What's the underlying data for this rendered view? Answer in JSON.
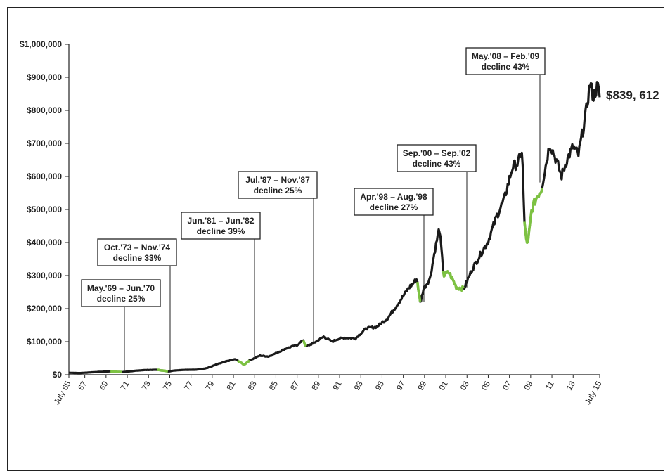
{
  "chart_data": {
    "type": "line",
    "title": "",
    "xlabel": "",
    "ylabel": "",
    "x_range": [
      1965.5,
      2015.5
    ],
    "ylim": [
      0,
      1000000
    ],
    "grid": false,
    "y_ticks": [
      {
        "value": 0,
        "label": "$0"
      },
      {
        "value": 100000,
        "label": "$100,000"
      },
      {
        "value": 200000,
        "label": "$200,000"
      },
      {
        "value": 300000,
        "label": "$300,000"
      },
      {
        "value": 400000,
        "label": "$400,000"
      },
      {
        "value": 500000,
        "label": "$500,000"
      },
      {
        "value": 600000,
        "label": "$600,000"
      },
      {
        "value": 700000,
        "label": "$700,000"
      },
      {
        "value": 800000,
        "label": "$800,000"
      },
      {
        "value": 900000,
        "label": "$900,000"
      },
      {
        "value": 1000000,
        "label": "$1,000,000"
      }
    ],
    "x_ticks": [
      {
        "value": 1965.5,
        "label": "July 65"
      },
      {
        "value": 1967,
        "label": "67"
      },
      {
        "value": 1969,
        "label": "69"
      },
      {
        "value": 1971,
        "label": "71"
      },
      {
        "value": 1973,
        "label": "73"
      },
      {
        "value": 1975,
        "label": "75"
      },
      {
        "value": 1977,
        "label": "77"
      },
      {
        "value": 1979,
        "label": "79"
      },
      {
        "value": 1981,
        "label": "81"
      },
      {
        "value": 1983,
        "label": "83"
      },
      {
        "value": 1985,
        "label": "85"
      },
      {
        "value": 1987,
        "label": "87"
      },
      {
        "value": 1989,
        "label": "89"
      },
      {
        "value": 1991,
        "label": "91"
      },
      {
        "value": 1993,
        "label": "93"
      },
      {
        "value": 1995,
        "label": "95"
      },
      {
        "value": 1997,
        "label": "97"
      },
      {
        "value": 1999,
        "label": "99"
      },
      {
        "value": 2001,
        "label": "01"
      },
      {
        "value": 2003,
        "label": "03"
      },
      {
        "value": 2005,
        "label": "05"
      },
      {
        "value": 2007,
        "label": "07"
      },
      {
        "value": 2009,
        "label": "09"
      },
      {
        "value": 2011,
        "label": "11"
      },
      {
        "value": 2013,
        "label": "13"
      },
      {
        "value": 2015.5,
        "label": "July 15"
      }
    ],
    "series": [
      {
        "color": "#1a1a1a",
        "points": [
          [
            1965.5,
            6000
          ],
          [
            1966.5,
            5000
          ],
          [
            1967.5,
            7000
          ],
          [
            1968.5,
            9000
          ],
          [
            1969.4,
            10000
          ],
          [
            1970.5,
            8000
          ],
          [
            1971.5,
            11000
          ],
          [
            1972.5,
            14000
          ],
          [
            1973.8,
            15000
          ],
          [
            1974.9,
            10000
          ],
          [
            1975.5,
            13000
          ],
          [
            1976.5,
            15000
          ],
          [
            1977.5,
            15000
          ],
          [
            1978.5,
            20000
          ],
          [
            1979.5,
            32000
          ],
          [
            1980.5,
            42000
          ],
          [
            1981.2,
            47000
          ],
          [
            1982.0,
            30000
          ],
          [
            1982.5,
            43000
          ],
          [
            1983.5,
            58000
          ],
          [
            1984.3,
            55000
          ],
          [
            1985.0,
            65000
          ],
          [
            1986.0,
            80000
          ],
          [
            1987.0,
            90000
          ],
          [
            1987.6,
            105000
          ],
          [
            1987.8,
            85000
          ],
          [
            1988.5,
            95000
          ],
          [
            1989.5,
            115000
          ],
          [
            1990.3,
            100000
          ],
          [
            1990.8,
            108000
          ],
          [
            1991.5,
            112000
          ],
          [
            1992.5,
            110000
          ],
          [
            1993.5,
            140000
          ],
          [
            1994.5,
            145000
          ],
          [
            1995.5,
            170000
          ],
          [
            1996.5,
            215000
          ],
          [
            1997.5,
            262000
          ],
          [
            1998.3,
            290000
          ],
          [
            1998.6,
            215000
          ],
          [
            1998.9,
            260000
          ],
          [
            1999.5,
            290000
          ],
          [
            2000.0,
            380000
          ],
          [
            2000.4,
            445000
          ],
          [
            2000.8,
            300000
          ],
          [
            2001.3,
            310000
          ],
          [
            2002.0,
            265000
          ],
          [
            2002.7,
            260000
          ],
          [
            2003.5,
            320000
          ],
          [
            2004.2,
            360000
          ],
          [
            2005.0,
            405000
          ],
          [
            2005.8,
            480000
          ],
          [
            2006.5,
            530000
          ],
          [
            2007.3,
            630000
          ],
          [
            2007.8,
            640000
          ],
          [
            2008.2,
            680000
          ],
          [
            2008.4,
            460000
          ],
          [
            2008.7,
            385000
          ],
          [
            2009.1,
            500000
          ],
          [
            2009.6,
            540000
          ],
          [
            2010.0,
            560000
          ],
          [
            2010.8,
            700000
          ],
          [
            2011.4,
            650000
          ],
          [
            2011.9,
            600000
          ],
          [
            2012.4,
            650000
          ],
          [
            2013.0,
            690000
          ],
          [
            2013.5,
            665000
          ],
          [
            2014.2,
            790000
          ],
          [
            2014.6,
            885000
          ],
          [
            2014.9,
            840000
          ],
          [
            2015.3,
            875000
          ],
          [
            2015.5,
            839612
          ]
        ]
      }
    ],
    "highlight_periods": [
      {
        "start": 1969.4,
        "end": 1970.5,
        "label_line1": "May.'69 – Jun.'70",
        "label_line2": "decline 25%"
      },
      {
        "start": 1973.8,
        "end": 1974.9,
        "label_line1": "Oct.'73 – Nov.'74",
        "label_line2": "decline 33%"
      },
      {
        "start": 1981.4,
        "end": 1982.5,
        "label_line1": "Jun.'81 – Jun.'82",
        "label_line2": "decline 39%"
      },
      {
        "start": 1987.55,
        "end": 1987.9,
        "label_line1": "Jul.'87 – Nov.'87",
        "label_line2": "decline 25%"
      },
      {
        "start": 1998.3,
        "end": 1998.6,
        "label_line1": "Apr.'98 – Aug.'98",
        "label_line2": "decline 27%"
      },
      {
        "start": 2000.7,
        "end": 2002.7,
        "label_line1": "Sep.'00 – Sep.'02",
        "label_line2": "decline 43%"
      },
      {
        "start": 2008.4,
        "end": 2010.1,
        "label_line1": "May.'08 – Feb.'09",
        "label_line2": "decline 43%"
      }
    ],
    "highlight_color": "#7dc242",
    "final_value_label": "$839, 612"
  }
}
